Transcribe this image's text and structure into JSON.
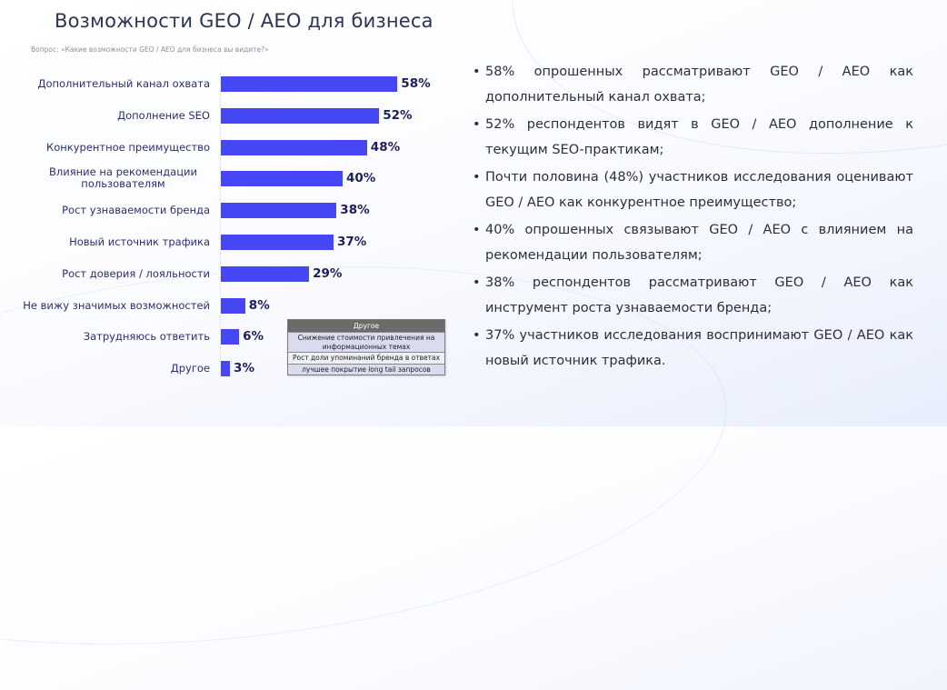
{
  "header": {
    "title": "Возможности GEO / AEO для бизнеса",
    "question": "Вопрос: «Какие возможности GEO / AEO для бизнеса вы видите?»"
  },
  "colors": {
    "bar": "#4646f5",
    "value_text": "#1e1f5a",
    "label_text": "#2b2f6b",
    "title_text": "#2a3550",
    "table_header": "#6b6b6b"
  },
  "chart_data": {
    "type": "bar",
    "orientation": "horizontal",
    "title": "Возможности GEO / AEO для бизнеса",
    "subtitle": "Вопрос: «Какие возможности GEO / AEO для бизнеса вы видите?»",
    "xlabel": "",
    "ylabel": "",
    "grid": false,
    "legend": null,
    "unit": "%",
    "categories": [
      "Дополнительный канал охвата",
      "Дополнение SEO",
      "Конкурентное преимущество",
      "Влияние на рекомендации пользователям",
      "Рост узнаваемости бренда",
      "Новый источник трафика",
      "Рост доверия / лояльности",
      "Не вижу значимых возможностей",
      "Затрудняюсь ответить",
      "Другое"
    ],
    "values": [
      58,
      52,
      48,
      40,
      38,
      37,
      29,
      8,
      6,
      3
    ],
    "labels": [
      "58%",
      "52%",
      "48%",
      "40%",
      "38%",
      "37%",
      "29%",
      "8%",
      "6%",
      "3%"
    ],
    "annotations": [
      {
        "type": "table",
        "title": "Другое",
        "rows": [
          "Снижение стоимости привлечения на информационных темах",
          "Рост доли упоминаний бренда в ответах",
          "лучшее покрытие long tail запросов"
        ]
      }
    ]
  },
  "other_table": {
    "header": "Другое",
    "rows": [
      "Снижение стоимости привлечения на информационных темах",
      "Рост доли упоминаний бренда в ответах",
      "лучшее покрытие long tail запросов"
    ]
  },
  "bullets": [
    "58% опрошенных рассматривают GEO / AEO как дополнительный канал охвата;",
    "52% респондентов видят в GEO / AEO дополнение к текущим SEO-практикам;",
    "Почти половина (48%) участников исследования оценивают GEO / AEO как конкурентное преимущество;",
    "40% опрошенных связывают GEO / AEO с влиянием на рекомендации пользователям;",
    "38% респондентов рассматривают GEO / AEO как инструмент роста узнаваемости бренда;",
    "37% участников исследования воспринимают GEO / AEO как новый источник трафика."
  ],
  "bullet_glyph": "•"
}
